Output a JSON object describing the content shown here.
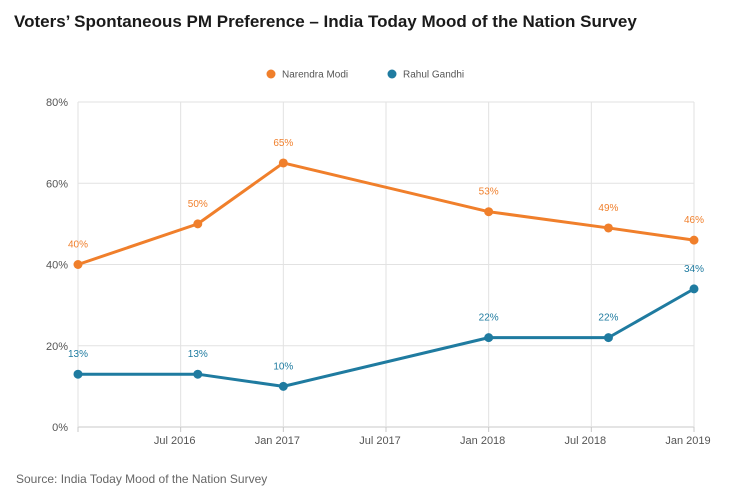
{
  "title": "Voters’ Spontaneous PM Preference – India Today Mood of the Nation Survey",
  "source": "Source: India Today Mood of the Nation Survey",
  "colors": {
    "modi": "#f07f2b",
    "gandhi": "#1f7ba0",
    "grid": "#e2e2e2",
    "axis": "#c8c8c8"
  },
  "chart_data": {
    "type": "line",
    "x": [
      "Jan 2016",
      "Jul 2016",
      "Jan 2017",
      "Jul 2017",
      "Jan 2018",
      "Jul 2018",
      "Jan 2019"
    ],
    "xlabels": [
      "",
      "Jul 2016",
      "Jan 2017",
      "Jul 2017",
      "Jan 2018",
      "Jul 2018",
      "Jan 2019"
    ],
    "yticks": [
      "0%",
      "20%",
      "40%",
      "60%",
      "80%"
    ],
    "ylim": [
      0,
      80
    ],
    "grid": true,
    "legend_position": "top-center",
    "series": [
      {
        "name": "Narendra Modi",
        "points": [
          {
            "x": "Jan 2016",
            "y": 40,
            "label": "40%"
          },
          {
            "x": "Aug 2016",
            "y": 50,
            "label": "50%"
          },
          {
            "x": "Jan 2017",
            "y": 65,
            "label": "65%"
          },
          {
            "x": "Jan 2018",
            "y": 53,
            "label": "53%"
          },
          {
            "x": "Aug 2018",
            "y": 49,
            "label": "49%"
          },
          {
            "x": "Jan 2019",
            "y": 46,
            "label": "46%"
          }
        ]
      },
      {
        "name": "Rahul Gandhi",
        "points": [
          {
            "x": "Jan 2016",
            "y": 13,
            "label": "13%"
          },
          {
            "x": "Aug 2016",
            "y": 13,
            "label": "13%"
          },
          {
            "x": "Jan 2017",
            "y": 10,
            "label": "10%"
          },
          {
            "x": "Jan 2018",
            "y": 22,
            "label": "22%"
          },
          {
            "x": "Aug 2018",
            "y": 22,
            "label": "22%"
          },
          {
            "x": "Jan 2019",
            "y": 34,
            "label": "34%"
          }
        ]
      }
    ]
  }
}
